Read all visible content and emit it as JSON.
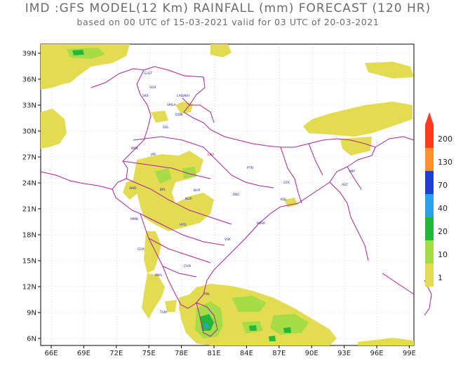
{
  "title": "IMD :GFS MODEL(12 Km) RAINFALL (mm) FORECAST (120 HR)",
  "subtitle": "based on 00 UTC of 15-03-2021 valid for 03 UTC of 20-03-2021",
  "lon_ticks": [
    "66E",
    "69E",
    "72E",
    "75E",
    "78E",
    "81E",
    "84E",
    "87E",
    "90E",
    "93E",
    "96E",
    "99E"
  ],
  "lat_ticks": [
    "39N",
    "36N",
    "33N",
    "30N",
    "27N",
    "24N",
    "21N",
    "18N",
    "15N",
    "12N",
    "9N",
    "6N"
  ],
  "colorbar": {
    "labels": [
      "200",
      "130",
      "70",
      "40",
      "20",
      "10",
      "1"
    ],
    "colors": [
      "#ff3b1f",
      "#ff8f2a",
      "#1f3fcf",
      "#2aa0e6",
      "#23b83b",
      "#a6dc45",
      "#e3dc52"
    ]
  },
  "map_colors": {
    "light_rain": "#e3dc52",
    "moderate_rain": "#a6dc45",
    "boundary": "#b0209a",
    "city_label": "#2a2aa8"
  },
  "city_labels": [
    "GLGT",
    "SKR",
    "LADAKH",
    "SGR",
    "SMLA",
    "DDN",
    "DEL",
    "JPR",
    "BKN",
    "LKO",
    "PTN",
    "GTK",
    "IMP",
    "AGT",
    "BHP",
    "AMD",
    "BPL",
    "NGP",
    "RNC",
    "KOL",
    "BBSR",
    "MMB",
    "HYD",
    "VSK",
    "GOA",
    "CHN",
    "BNG",
    "TVM",
    "PBL"
  ]
}
